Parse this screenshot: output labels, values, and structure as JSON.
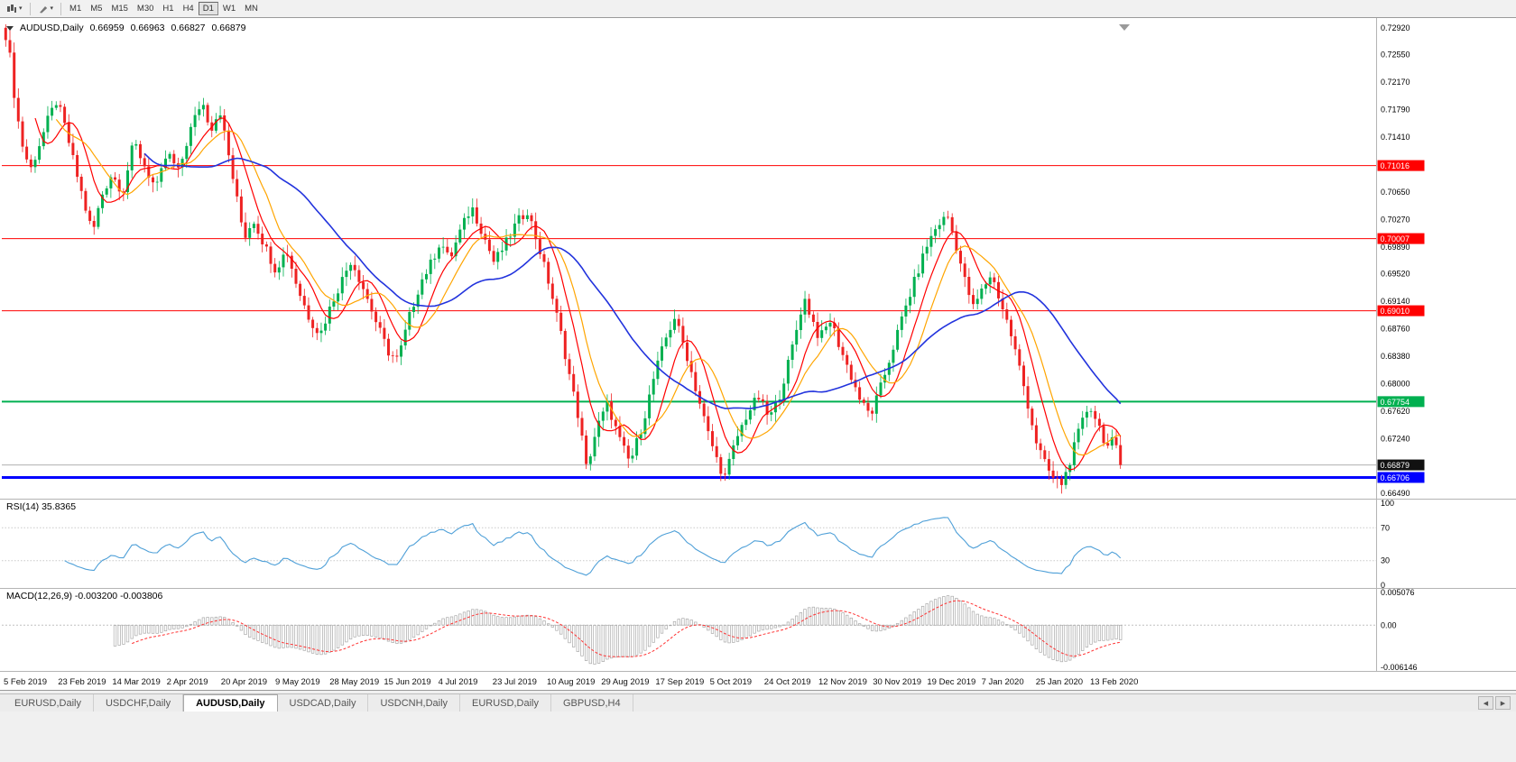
{
  "icons": {
    "caret": "▾",
    "tab_scroll_left": "◀",
    "tab_scroll_right": "▶"
  },
  "toolbar": {
    "timeframes": [
      "M1",
      "M5",
      "M15",
      "M30",
      "H1",
      "H4",
      "D1",
      "W1",
      "MN"
    ],
    "active_timeframe": "D1"
  },
  "tabs": {
    "items": [
      {
        "label": "EURUSD,Daily",
        "active": false
      },
      {
        "label": "USDCHF,Daily",
        "active": false
      },
      {
        "label": "AUDUSD,Daily",
        "active": true
      },
      {
        "label": "USDCAD,Daily",
        "active": false
      },
      {
        "label": "USDCNH,Daily",
        "active": false
      },
      {
        "label": "EURUSD,Daily",
        "active": false
      },
      {
        "label": "GBPUSD,H4",
        "active": false
      }
    ]
  },
  "chart_data": {
    "type": "candlestick",
    "symbol": "AUDUSD",
    "period": "Daily",
    "header": {
      "symbol_period": "AUDUSD,Daily",
      "open": "0.66959",
      "high": "0.66963",
      "low": "0.66827",
      "close": "0.66879"
    },
    "price_range": {
      "max": 0.7298,
      "min": 0.6645
    },
    "price_axis_ticks": [
      "0.72920",
      "0.72550",
      "0.72170",
      "0.71790",
      "0.71410",
      "0.70650",
      "0.70270",
      "0.69890",
      "0.69520",
      "0.69140",
      "0.68760",
      "0.68380",
      "0.68000",
      "0.67620",
      "0.67240",
      "0.66490"
    ],
    "levels": [
      {
        "price": 0.71016,
        "label": "0.71016",
        "color": "#FF0000",
        "width": 1,
        "kind": "resistance"
      },
      {
        "price": 0.70007,
        "label": "0.70007",
        "color": "#FF0000",
        "width": 1,
        "kind": "resistance"
      },
      {
        "price": 0.6901,
        "label": "0.69010",
        "color": "#FF0000",
        "width": 1,
        "kind": "resistance"
      },
      {
        "price": 0.67754,
        "label": "0.67754",
        "color": "#00B050",
        "width": 2,
        "kind": "support"
      },
      {
        "price": 0.66706,
        "label": "0.66706",
        "color": "#0000FF",
        "width": 3,
        "kind": "support"
      }
    ],
    "current_price": {
      "value": 0.66879,
      "label": "0.66879",
      "badge_color": "#111111"
    },
    "moving_averages": [
      {
        "name": "fast-ma",
        "color": "#FF0000",
        "period": 8
      },
      {
        "name": "medium-ma",
        "color": "#FFA500",
        "period": 13
      },
      {
        "name": "slow-ma",
        "color": "#2233DD",
        "period": 34
      }
    ],
    "colors": {
      "bull": "#00B050",
      "bear": "#EE2222",
      "bid_line": "#B0B0B0"
    },
    "bars": 266,
    "close_waypoints": [
      [
        0.0,
        0.7282
      ],
      [
        0.004,
        0.725
      ],
      [
        0.008,
        0.7195
      ],
      [
        0.014,
        0.7135
      ],
      [
        0.022,
        0.7095
      ],
      [
        0.03,
        0.713
      ],
      [
        0.038,
        0.7165
      ],
      [
        0.046,
        0.7192
      ],
      [
        0.054,
        0.715
      ],
      [
        0.062,
        0.71
      ],
      [
        0.072,
        0.704
      ],
      [
        0.078,
        0.7008
      ],
      [
        0.086,
        0.706
      ],
      [
        0.095,
        0.709
      ],
      [
        0.105,
        0.7065
      ],
      [
        0.115,
        0.7135
      ],
      [
        0.125,
        0.71
      ],
      [
        0.135,
        0.7068
      ],
      [
        0.145,
        0.712
      ],
      [
        0.155,
        0.7092
      ],
      [
        0.165,
        0.7148
      ],
      [
        0.176,
        0.7192
      ],
      [
        0.184,
        0.7152
      ],
      [
        0.192,
        0.718
      ],
      [
        0.2,
        0.7115
      ],
      [
        0.208,
        0.705
      ],
      [
        0.214,
        0.7002
      ],
      [
        0.222,
        0.7028
      ],
      [
        0.232,
        0.6992
      ],
      [
        0.242,
        0.6958
      ],
      [
        0.252,
        0.6985
      ],
      [
        0.262,
        0.6932
      ],
      [
        0.272,
        0.6892
      ],
      [
        0.282,
        0.6868
      ],
      [
        0.292,
        0.691
      ],
      [
        0.3,
        0.6938
      ],
      [
        0.31,
        0.6972
      ],
      [
        0.322,
        0.6928
      ],
      [
        0.334,
        0.6878
      ],
      [
        0.344,
        0.6842
      ],
      [
        0.352,
        0.6833
      ],
      [
        0.362,
        0.6892
      ],
      [
        0.372,
        0.694
      ],
      [
        0.382,
        0.6968
      ],
      [
        0.39,
        0.6998
      ],
      [
        0.398,
        0.697
      ],
      [
        0.408,
        0.7012
      ],
      [
        0.418,
        0.7045
      ],
      [
        0.428,
        0.7008
      ],
      [
        0.438,
        0.6968
      ],
      [
        0.448,
        0.6992
      ],
      [
        0.458,
        0.7022
      ],
      [
        0.468,
        0.704
      ],
      [
        0.478,
        0.699
      ],
      [
        0.488,
        0.6935
      ],
      [
        0.498,
        0.687
      ],
      [
        0.508,
        0.6795
      ],
      [
        0.515,
        0.6745
      ],
      [
        0.521,
        0.6682
      ],
      [
        0.53,
        0.6738
      ],
      [
        0.54,
        0.6772
      ],
      [
        0.55,
        0.6725
      ],
      [
        0.56,
        0.669
      ],
      [
        0.572,
        0.6748
      ],
      [
        0.582,
        0.6812
      ],
      [
        0.592,
        0.6862
      ],
      [
        0.6,
        0.6892
      ],
      [
        0.61,
        0.6845
      ],
      [
        0.62,
        0.6788
      ],
      [
        0.63,
        0.6732
      ],
      [
        0.638,
        0.6695
      ],
      [
        0.645,
        0.667
      ],
      [
        0.655,
        0.6722
      ],
      [
        0.665,
        0.6758
      ],
      [
        0.675,
        0.6782
      ],
      [
        0.685,
        0.6752
      ],
      [
        0.693,
        0.6778
      ],
      [
        0.701,
        0.6822
      ],
      [
        0.709,
        0.6872
      ],
      [
        0.716,
        0.692
      ],
      [
        0.722,
        0.6895
      ],
      [
        0.73,
        0.6862
      ],
      [
        0.74,
        0.6888
      ],
      [
        0.748,
        0.6852
      ],
      [
        0.758,
        0.6812
      ],
      [
        0.768,
        0.6772
      ],
      [
        0.776,
        0.6756
      ],
      [
        0.786,
        0.68
      ],
      [
        0.796,
        0.685
      ],
      [
        0.806,
        0.69
      ],
      [
        0.816,
        0.6945
      ],
      [
        0.826,
        0.699
      ],
      [
        0.836,
        0.702
      ],
      [
        0.845,
        0.7032
      ],
      [
        0.852,
        0.6995
      ],
      [
        0.86,
        0.6945
      ],
      [
        0.868,
        0.6905
      ],
      [
        0.876,
        0.693
      ],
      [
        0.884,
        0.6952
      ],
      [
        0.892,
        0.6915
      ],
      [
        0.9,
        0.6878
      ],
      [
        0.908,
        0.6832
      ],
      [
        0.916,
        0.6778
      ],
      [
        0.924,
        0.6722
      ],
      [
        0.932,
        0.669
      ],
      [
        0.94,
        0.6668
      ],
      [
        0.948,
        0.6662
      ],
      [
        0.956,
        0.67
      ],
      [
        0.964,
        0.674
      ],
      [
        0.972,
        0.6772
      ],
      [
        0.98,
        0.6745
      ],
      [
        0.988,
        0.6712
      ],
      [
        0.994,
        0.6722
      ],
      [
        1.0,
        0.6688
      ]
    ],
    "x_axis_dates": [
      "5 Feb 2019",
      "23 Feb 2019",
      "14 Mar 2019",
      "2 Apr 2019",
      "20 Apr 2019",
      "9 May 2019",
      "28 May 2019",
      "15 Jun 2019",
      "4 Jul 2019",
      "23 Jul 2019",
      "10 Aug 2019",
      "29 Aug 2019",
      "17 Sep 2019",
      "5 Oct 2019",
      "24 Oct 2019",
      "12 Nov 2019",
      "30 Nov 2019",
      "19 Dec 2019",
      "7 Jan 2020",
      "25 Jan 2020",
      "13 Feb 2020"
    ],
    "indicators": [
      {
        "name": "RSI",
        "label": "RSI(14) 35.8365",
        "period": 14,
        "value": 35.8365,
        "color": "#4FA0D8",
        "levels": [
          "100",
          "70",
          "30",
          "0"
        ]
      },
      {
        "name": "MACD",
        "label": "MACD(12,26,9) -0.003200 -0.003806",
        "fast": 12,
        "slow": 26,
        "signal_period": 9,
        "value": -0.0032,
        "signal_value": -0.003806,
        "histogram_color": "#A8A8A8",
        "signal_color": "#FF3333",
        "scale_labels": [
          "0.005076",
          "0.00",
          "-0.006146"
        ]
      }
    ]
  }
}
